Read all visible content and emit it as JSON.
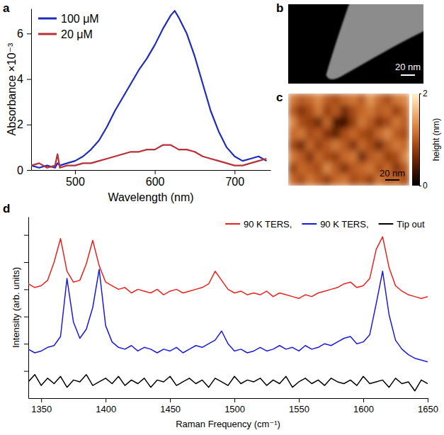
{
  "chart_data": [
    {
      "panel": "a",
      "type": "line",
      "xlabel": "Wavelength (nm)",
      "ylabel": "Absorbance ×10⁻³",
      "x": [
        445,
        455,
        465,
        475,
        478,
        481,
        490,
        500,
        510,
        520,
        530,
        540,
        550,
        560,
        570,
        580,
        590,
        600,
        610,
        620,
        625,
        630,
        640,
        650,
        660,
        670,
        680,
        690,
        700,
        710,
        720,
        730,
        740
      ],
      "series": [
        {
          "name": "100 μM",
          "color": "#1f2db8",
          "values": [
            0.2,
            0.1,
            0.2,
            0.1,
            0.3,
            0.2,
            0.3,
            0.4,
            0.6,
            0.9,
            1.3,
            1.9,
            2.6,
            3.2,
            3.8,
            4.4,
            4.9,
            5.5,
            6.2,
            6.8,
            7.0,
            6.7,
            6.0,
            5.0,
            3.8,
            2.6,
            1.7,
            1.0,
            0.6,
            0.4,
            0.5,
            0.6,
            0.4
          ]
        },
        {
          "name": "20 μM",
          "color": "#b8313a",
          "values": [
            0.2,
            0.3,
            0.1,
            0.2,
            0.7,
            0.1,
            0.2,
            0.2,
            0.3,
            0.3,
            0.4,
            0.5,
            0.6,
            0.7,
            0.8,
            0.8,
            0.9,
            0.9,
            1.1,
            1.1,
            1.0,
            0.9,
            0.9,
            0.8,
            0.6,
            0.5,
            0.4,
            0.3,
            0.2,
            0.2,
            0.3,
            0.4,
            0.5
          ]
        }
      ],
      "xlim": [
        445,
        745
      ],
      "ylim": [
        0,
        7.1
      ],
      "xticks": [
        500,
        600,
        700
      ],
      "yticks": [
        0,
        2,
        4,
        6
      ],
      "legend": "upper left"
    },
    {
      "panel": "b",
      "type": "image",
      "scale_bar": "20 nm"
    },
    {
      "panel": "c",
      "type": "heatmap",
      "cells": [
        [
          1.2,
          1.0,
          1.1,
          1.3,
          1.0,
          0.9,
          1.1,
          1.2,
          1.0,
          1.4,
          1.1,
          0.9,
          1.2,
          1.3
        ],
        [
          1.0,
          0.7,
          0.9,
          1.2,
          0.8,
          1.0,
          0.6,
          0.9,
          1.1,
          1.2,
          1.0,
          1.1,
          0.8,
          1.1
        ],
        [
          1.3,
          0.9,
          0.8,
          0.6,
          1.1,
          0.4,
          0.3,
          0.8,
          1.2,
          1.0,
          0.7,
          0.9,
          1.2,
          1.0
        ],
        [
          1.1,
          1.2,
          0.9,
          1.0,
          0.7,
          0.5,
          0.9,
          1.1,
          0.9,
          0.8,
          1.1,
          1.3,
          1.0,
          0.9
        ],
        [
          0.9,
          0.6,
          1.1,
          0.8,
          1.0,
          1.2,
          1.0,
          0.7,
          1.1,
          0.9,
          0.6,
          1.0,
          1.2,
          1.1
        ],
        [
          1.2,
          1.0,
          0.7,
          1.1,
          0.9,
          0.8,
          1.1,
          1.2,
          0.6,
          1.0,
          1.1,
          0.8,
          0.9,
          1.3
        ],
        [
          0.8,
          1.1,
          1.0,
          0.9,
          1.3,
          1.0,
          0.7,
          1.0,
          1.1,
          1.2,
          0.9,
          1.1,
          0.7,
          1.0
        ],
        [
          1.1,
          0.9,
          1.2,
          1.0,
          0.8,
          1.1,
          1.2,
          0.9,
          1.0,
          0.8,
          1.2,
          1.0,
          1.1,
          0.9
        ]
      ],
      "colorbar": {
        "range": [
          0,
          2
        ],
        "ticks": [
          0,
          2
        ],
        "label": "height (nm)"
      },
      "scale_bar": "20 nm"
    },
    {
      "panel": "d",
      "type": "line",
      "xlabel": "Raman Frequency (cm⁻¹)",
      "ylabel": "Intensity (arb. units)",
      "x": [
        1340,
        1345,
        1350,
        1355,
        1360,
        1365,
        1370,
        1375,
        1380,
        1385,
        1390,
        1395,
        1400,
        1405,
        1410,
        1415,
        1420,
        1425,
        1430,
        1435,
        1440,
        1445,
        1450,
        1455,
        1460,
        1465,
        1470,
        1475,
        1480,
        1485,
        1490,
        1495,
        1500,
        1505,
        1510,
        1515,
        1520,
        1525,
        1530,
        1535,
        1540,
        1545,
        1550,
        1555,
        1560,
        1565,
        1570,
        1575,
        1580,
        1585,
        1590,
        1595,
        1600,
        1605,
        1610,
        1615,
        1620,
        1625,
        1630,
        1635,
        1640,
        1645,
        1650
      ],
      "series": [
        {
          "name": "90 K TERS,",
          "color": "#e8231f",
          "values": [
            6.3,
            6.1,
            6.2,
            6.5,
            7.5,
            8.8,
            7.0,
            6.4,
            6.5,
            7.4,
            8.7,
            7.3,
            6.4,
            6.2,
            6.0,
            6.1,
            5.8,
            6.0,
            5.9,
            5.8,
            6.0,
            5.7,
            5.9,
            6.0,
            5.8,
            5.9,
            6.0,
            6.1,
            6.3,
            7.0,
            6.5,
            6.0,
            5.8,
            5.9,
            5.7,
            5.8,
            5.7,
            5.9,
            5.6,
            5.8,
            5.7,
            5.6,
            5.5,
            5.7,
            5.6,
            5.8,
            5.9,
            6.0,
            6.1,
            6.3,
            6.4,
            6.1,
            6.2,
            6.6,
            8.2,
            8.9,
            7.2,
            6.2,
            5.9,
            5.7,
            5.6,
            5.5,
            5.6
          ]
        },
        {
          "name": "90 K TERS,",
          "color": "#1a1adb",
          "values": [
            2.7,
            2.5,
            2.6,
            2.8,
            2.9,
            3.4,
            6.6,
            4.2,
            3.3,
            3.8,
            5.0,
            7.1,
            4.0,
            3.1,
            2.8,
            2.7,
            2.9,
            2.6,
            2.8,
            2.7,
            2.5,
            2.7,
            2.6,
            2.8,
            2.5,
            2.7,
            2.9,
            2.8,
            3.0,
            3.2,
            3.7,
            3.0,
            2.6,
            2.7,
            2.5,
            2.6,
            2.8,
            2.6,
            2.7,
            2.9,
            2.7,
            2.8,
            2.6,
            2.9,
            2.7,
            2.8,
            3.0,
            2.9,
            3.1,
            3.3,
            3.4,
            3.0,
            3.1,
            3.5,
            5.2,
            7.0,
            4.6,
            3.2,
            2.7,
            2.4,
            2.2,
            2.1,
            2.0
          ]
        },
        {
          "name": "Tip out",
          "color": "#000000",
          "values": [
            0.9,
            1.3,
            0.7,
            1.1,
            0.8,
            1.2,
            0.6,
            1.0,
            0.9,
            1.3,
            0.7,
            0.9,
            1.1,
            0.8,
            1.2,
            0.7,
            1.0,
            0.8,
            1.1,
            0.6,
            1.0,
            0.9,
            1.2,
            0.7,
            0.9,
            1.1,
            0.8,
            1.0,
            0.6,
            1.1,
            0.9,
            0.7,
            1.2,
            0.8,
            1.0,
            0.9,
            1.1,
            0.7,
            1.0,
            0.8,
            1.2,
            0.6,
            0.9,
            1.1,
            0.8,
            1.0,
            0.7,
            1.1,
            0.9,
            0.8,
            1.0,
            0.7,
            1.2,
            0.8,
            0.9,
            1.0,
            0.6,
            1.1,
            0.8,
            0.9,
            0.4,
            1.0,
            0.8
          ]
        }
      ],
      "xlim": [
        1340,
        1650
      ],
      "ylim": [
        0,
        10
      ],
      "xticks": [
        1350,
        1400,
        1450,
        1500,
        1550,
        1600,
        1650
      ],
      "yticks": [
        1.5,
        3,
        4.5,
        6,
        7.5,
        9
      ],
      "tick_labels": "x",
      "legend": "upper right"
    }
  ]
}
